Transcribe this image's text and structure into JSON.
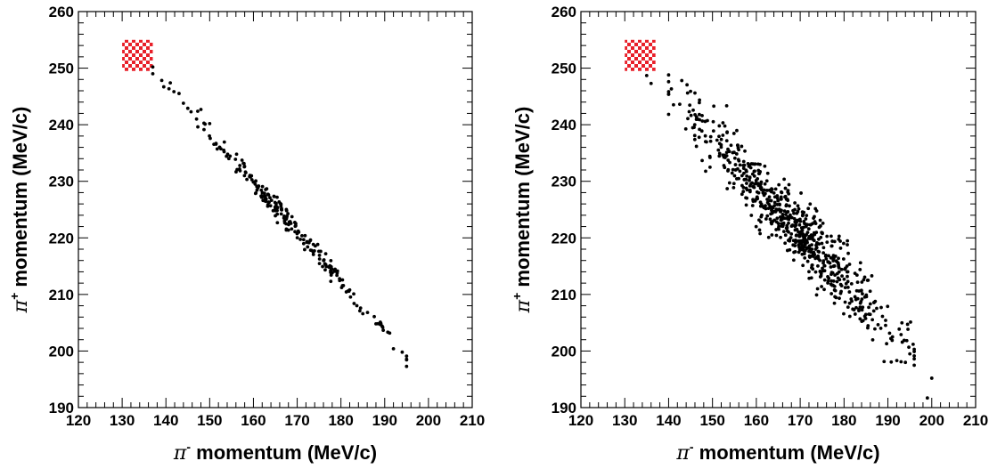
{
  "chart_data": [
    {
      "type": "scatter",
      "xlabel": {
        "symbol": "π",
        "sup": "-",
        "text": " momentum (MeV/c)"
      },
      "ylabel": {
        "symbol": "π",
        "sup": "+",
        "text": " momentum (MeV/c)"
      },
      "xlim": [
        120,
        210
      ],
      "ylim": [
        190,
        260
      ],
      "x_ticks": [
        "120",
        "130",
        "140",
        "150",
        "160",
        "170",
        "180",
        "190",
        "200",
        "210"
      ],
      "y_ticks": [
        "190",
        "200",
        "210",
        "220",
        "230",
        "240",
        "250",
        "260"
      ],
      "grid": false,
      "highlight_box": {
        "x": [
          130,
          137
        ],
        "y": [
          249.5,
          255
        ],
        "pattern": "red-white checkerboard"
      },
      "band": {
        "x_start": 137,
        "x_end": 195,
        "y_at_start": 250,
        "y_at_end": 199,
        "spread_y": 0.9,
        "n_points": 220
      },
      "explicit_points": [
        [
          137,
          250.2
        ],
        [
          141,
          247.4
        ],
        [
          144,
          243.8
        ],
        [
          145,
          242.9
        ],
        [
          148,
          242.7
        ],
        [
          147,
          241.0
        ],
        [
          150,
          240.2
        ],
        [
          182,
          210.8
        ],
        [
          183,
          208.4
        ],
        [
          185,
          206.6
        ],
        [
          188,
          204.8
        ],
        [
          189,
          205.1
        ],
        [
          192,
          200.4
        ],
        [
          194,
          199.8
        ],
        [
          195,
          199.1
        ]
      ]
    },
    {
      "type": "scatter",
      "xlabel": {
        "symbol": "π",
        "sup": "-",
        "text": " momentum (MeV/c)"
      },
      "ylabel": {
        "symbol": "π",
        "sup": "+",
        "text": " momentum (MeV/c)"
      },
      "xlim": [
        120,
        210
      ],
      "ylim": [
        190,
        260
      ],
      "x_ticks": [
        "120",
        "130",
        "140",
        "150",
        "160",
        "170",
        "180",
        "190",
        "200",
        "210"
      ],
      "y_ticks": [
        "190",
        "200",
        "210",
        "220",
        "230",
        "240",
        "250",
        "260"
      ],
      "grid": false,
      "highlight_box": {
        "x": [
          130,
          137
        ],
        "y": [
          249.5,
          255
        ],
        "pattern": "red-white checkerboard"
      },
      "band": {
        "x_start": 140,
        "x_end": 196,
        "y_at_start": 245,
        "y_at_end": 200,
        "spread_y": 3.0,
        "n_points": 700
      },
      "explicit_points": [
        [
          135,
          248.7
        ],
        [
          136,
          247.3
        ],
        [
          140,
          247.6
        ],
        [
          143,
          247.8
        ],
        [
          145,
          245.9
        ],
        [
          146,
          245.6
        ],
        [
          147,
          243.9
        ],
        [
          147,
          241.8
        ],
        [
          193,
          202.9
        ],
        [
          193,
          198.1
        ],
        [
          195,
          199.5
        ],
        [
          196,
          199.9
        ],
        [
          199,
          191.7
        ],
        [
          200,
          195.2
        ]
      ]
    }
  ]
}
